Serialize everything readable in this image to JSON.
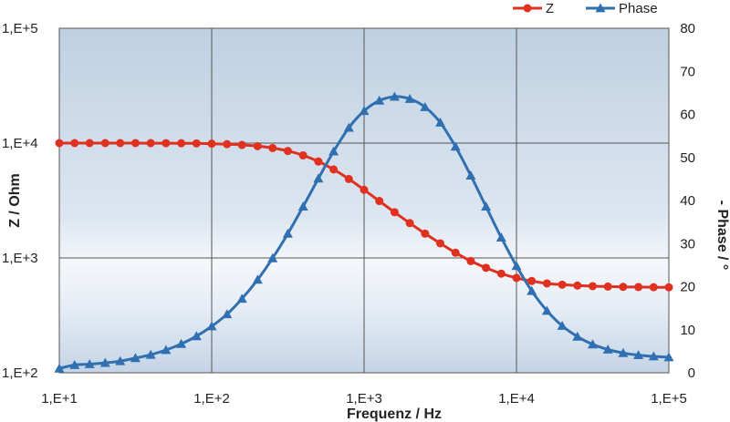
{
  "chart_data": {
    "type": "line",
    "xlabel": "Frequenz / Hz",
    "ylabel": "Z / Ohm",
    "y2label": "- Phase / °",
    "x_scale": "log",
    "xlim": [
      10,
      100000
    ],
    "y_scale": "log",
    "ylim": [
      100,
      100000
    ],
    "y2lim": [
      0,
      80
    ],
    "grid": true,
    "legend_position": "top-right",
    "x_ticks": [
      "1,E+1",
      "1,E+2",
      "1,E+3",
      "1,E+4",
      "1,E+5"
    ],
    "y_ticks": [
      "1,E+2",
      "1,E+3",
      "1,E+4",
      "1,E+5"
    ],
    "y2_ticks": [
      "0",
      "10",
      "20",
      "30",
      "40",
      "50",
      "60",
      "70",
      "80"
    ],
    "x": [
      10,
      12.6,
      15.8,
      20,
      25.1,
      31.6,
      39.8,
      50.1,
      63.1,
      79.4,
      100,
      126,
      158,
      200,
      251,
      316,
      398,
      501,
      631,
      794,
      1000,
      1259,
      1585,
      1995,
      2512,
      3162,
      3981,
      5012,
      6310,
      7943,
      10000,
      12589,
      15849,
      19953,
      25119,
      31623,
      39811,
      50119,
      63096,
      79433,
      100000
    ],
    "series": [
      {
        "name": "Z",
        "axis": "left",
        "color": "#e03020",
        "marker": "circle",
        "values": [
          10000,
          10000,
          10000,
          10000,
          10000,
          10000,
          9990,
          9980,
          9970,
          9940,
          9880,
          9790,
          9640,
          9410,
          9060,
          8540,
          7820,
          6920,
          5900,
          4870,
          3920,
          3130,
          2500,
          2010,
          1630,
          1340,
          1110,
          940,
          820,
          730,
          670,
          630,
          600,
          585,
          575,
          568,
          563,
          560,
          558,
          556,
          555
        ]
      },
      {
        "name": "Phase",
        "axis": "right",
        "color": "#3070b0",
        "marker": "triangle",
        "values": [
          1,
          1.8,
          2,
          2.3,
          2.7,
          3.4,
          4.2,
          5.3,
          6.7,
          8.5,
          10.8,
          13.6,
          17.2,
          21.6,
          26.6,
          32.3,
          38.6,
          45.1,
          51.4,
          56.9,
          60.8,
          63.2,
          64.1,
          63.6,
          61.7,
          58.1,
          52.5,
          45.8,
          38.6,
          31.4,
          24.8,
          19,
          14.4,
          10.9,
          8.4,
          6.6,
          5.4,
          4.6,
          4.1,
          3.8,
          3.6
        ]
      }
    ]
  }
}
